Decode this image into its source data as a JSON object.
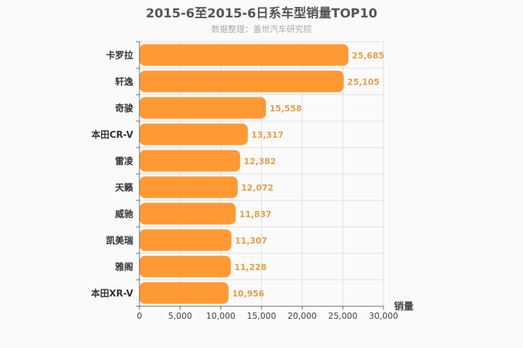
{
  "chart_data": {
    "type": "bar",
    "orientation": "horizontal",
    "title": "2015-6至2015-6日系车型销量TOP10",
    "subtitle": "数据整理：盖世汽车研究院",
    "xlabel": "销量",
    "ylabel": "",
    "xlim": [
      0,
      30000
    ],
    "xticks": [
      "0",
      "5,000",
      "10,000",
      "15,000",
      "20,000",
      "25,000",
      "30,000"
    ],
    "grid": true,
    "categories": [
      "卡罗拉",
      "轩逸",
      "奇骏",
      "本田CR-V",
      "雷凌",
      "天籁",
      "威驰",
      "凯美瑞",
      "雅阁",
      "本田XR-V"
    ],
    "values": [
      25685,
      25105,
      15558,
      13317,
      12382,
      12072,
      11837,
      11307,
      11228,
      10956
    ],
    "value_labels": [
      "25,685",
      "25,105",
      "15,558",
      "13,317",
      "12,382",
      "12,072",
      "11,837",
      "11,307",
      "11,228",
      "10,956"
    ]
  },
  "colors": {
    "bar": "#ff9933",
    "value_label": "#e8a04a",
    "axis": "#666666",
    "grid": "#dddddd",
    "category_label": "#333333"
  }
}
